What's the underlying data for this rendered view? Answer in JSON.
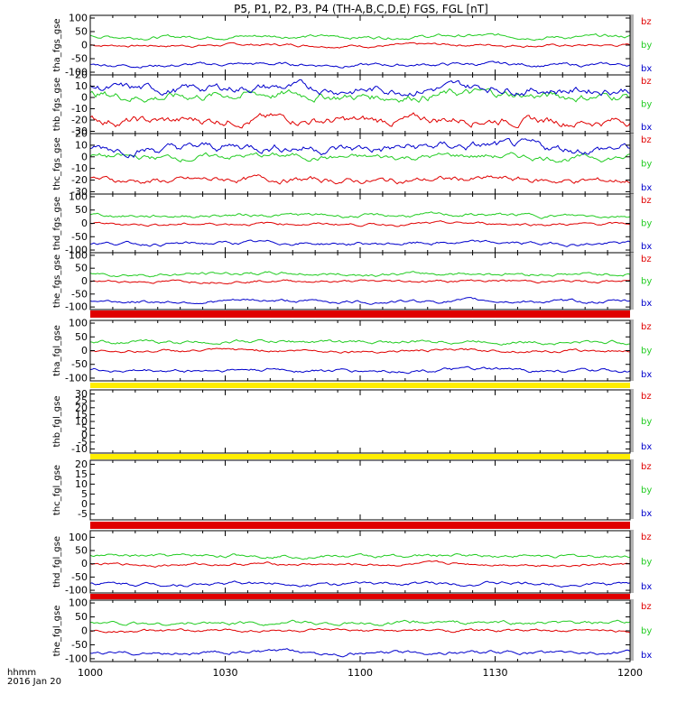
{
  "title": "P5, P1, P2, P3, P4 (TH-A,B,C,D,E) FGS, FGL [nT]",
  "colors": {
    "bz": "#e00000",
    "by": "#22cc22",
    "bx": "#0000cc",
    "frame": "#000000",
    "yellow": "#ffee00"
  },
  "x_axis": {
    "ticks": [
      "1000",
      "1030",
      "1100",
      "1130",
      "1200"
    ],
    "label_top": "hhmm",
    "label_bottom": "2016 Jan 20",
    "range_minutes": [
      0,
      120
    ]
  },
  "chart_data": [
    {
      "type": "line",
      "ylabel": "tha_fgs_gse",
      "ylim": [
        -110,
        110
      ],
      "ticks": [
        100,
        50,
        0,
        -50,
        -100
      ],
      "series": [
        {
          "name": "bz",
          "level": 0,
          "noise": 4
        },
        {
          "name": "by",
          "level": 32,
          "noise": 5
        },
        {
          "name": "bx",
          "level": -72,
          "noise": 5
        }
      ],
      "legend": [
        "bz",
        "by",
        "bx"
      ]
    },
    {
      "type": "line",
      "ylabel": "thb_fgs_gse",
      "ylim": [
        -32,
        20
      ],
      "ticks": [
        20,
        10,
        0,
        -10,
        -20,
        -30
      ],
      "series": [
        {
          "name": "bz",
          "level": -20,
          "noise": 3
        },
        {
          "name": "by",
          "level": 2,
          "noise": 3
        },
        {
          "name": "bx",
          "level": 8,
          "noise": 3
        }
      ],
      "legend": [
        "bz",
        "by",
        "bx"
      ]
    },
    {
      "type": "line",
      "ylabel": "thc_fgs_gse",
      "ylim": [
        -32,
        20
      ],
      "ticks": [
        20,
        10,
        0,
        -10,
        -20,
        -30
      ],
      "series": [
        {
          "name": "bz",
          "level": -20,
          "noise": 2
        },
        {
          "name": "by",
          "level": 0,
          "noise": 2
        },
        {
          "name": "bx",
          "level": 8,
          "noise": 3
        }
      ],
      "legend": [
        "bz",
        "by",
        "bx"
      ]
    },
    {
      "type": "line",
      "ylabel": "thd_fgs_gse",
      "ylim": [
        -110,
        110
      ],
      "ticks": [
        100,
        50,
        0,
        -50,
        -100
      ],
      "series": [
        {
          "name": "bz",
          "level": -2,
          "noise": 4
        },
        {
          "name": "by",
          "level": 30,
          "noise": 5
        },
        {
          "name": "bx",
          "level": -75,
          "noise": 5
        }
      ],
      "legend": [
        "bz",
        "by",
        "bx"
      ]
    },
    {
      "type": "line",
      "ylabel": "the_fgs_gse",
      "ylim": [
        -110,
        110
      ],
      "ticks": [
        100,
        50,
        0,
        -50,
        -100
      ],
      "series": [
        {
          "name": "bz",
          "level": 0,
          "noise": 4
        },
        {
          "name": "by",
          "level": 28,
          "noise": 5
        },
        {
          "name": "bx",
          "level": -78,
          "noise": 5
        }
      ],
      "legend": [
        "bz",
        "by",
        "bx"
      ]
    },
    {
      "type": "line",
      "ylabel": "tha_fgl_gse",
      "ylim": [
        -110,
        110
      ],
      "ticks": [
        100,
        50,
        0,
        -50,
        -100
      ],
      "series": [
        {
          "name": "bz",
          "level": 0,
          "noise": 4
        },
        {
          "name": "by",
          "level": 32,
          "noise": 5
        },
        {
          "name": "bx",
          "level": -72,
          "noise": 5
        }
      ],
      "legend": [
        "bz",
        "by",
        "bx"
      ]
    },
    {
      "type": "line",
      "ylabel": "thb_fgl_gse",
      "ylim": [
        -13,
        33
      ],
      "ticks": [
        30,
        25,
        20,
        15,
        10,
        5,
        0,
        -5,
        -10
      ],
      "series": [],
      "legend": [
        "bz",
        "by",
        "bx"
      ]
    },
    {
      "type": "line",
      "ylabel": "thc_fgl_gse",
      "ylim": [
        -8,
        22
      ],
      "ticks": [
        20,
        15,
        10,
        5,
        0,
        -5
      ],
      "series": [],
      "legend": [
        "bz",
        "by",
        "bx"
      ]
    },
    {
      "type": "line",
      "ylabel": "thd_fgl_gse",
      "ylim": [
        -110,
        125
      ],
      "ticks": [
        100,
        50,
        0,
        -50,
        -100
      ],
      "series": [
        {
          "name": "bz",
          "level": -2,
          "noise": 4
        },
        {
          "name": "by",
          "level": 30,
          "noise": 5
        },
        {
          "name": "bx",
          "level": -75,
          "noise": 5
        }
      ],
      "legend": [
        "bz",
        "by",
        "bx"
      ]
    },
    {
      "type": "line",
      "ylabel": "the_fgl_gse",
      "ylim": [
        -110,
        110
      ],
      "ticks": [
        100,
        50,
        0,
        -50,
        -100
      ],
      "series": [
        {
          "name": "bz",
          "level": 0,
          "noise": 4
        },
        {
          "name": "by",
          "level": 28,
          "noise": 5
        },
        {
          "name": "bx",
          "level": -78,
          "noise": 5
        }
      ],
      "legend": [
        "bz",
        "by",
        "bx"
      ]
    }
  ]
}
